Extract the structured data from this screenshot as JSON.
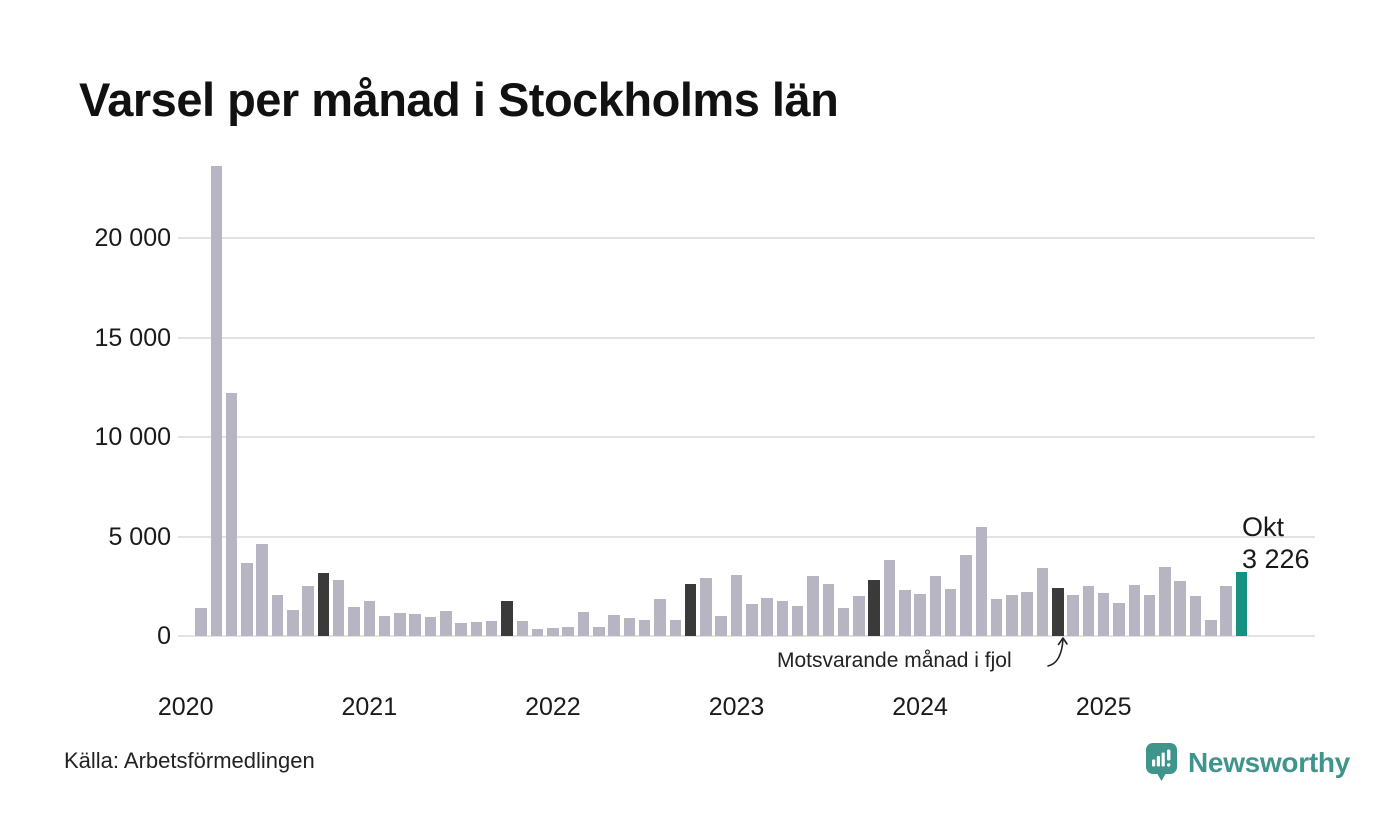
{
  "title": "Varsel per månad i Stockholms län",
  "source": "Källa: Arbetsförmedlingen",
  "brand": {
    "name": "Newsworthy",
    "icon": "newsworthy-speech-bubble-chart-icon"
  },
  "annotation": {
    "text": "Motsvarande månad i fjol"
  },
  "latest_label": {
    "month": "Okt",
    "value": "3 226"
  },
  "colors": {
    "bar_normal": "#b8b5c3",
    "bar_prior_october": "#3a3a3a",
    "bar_latest": "#14917f",
    "gridline": "#e3e3e6",
    "brand_teal": "#3f958b",
    "text_dark": "#1a1a1a"
  },
  "chart_data": {
    "type": "bar",
    "title": "Varsel per månad i Stockholms län",
    "xlabel": "",
    "ylabel": "",
    "ylim": [
      0,
      24000
    ],
    "grid": true,
    "y_ticks": [
      {
        "value": 0,
        "label": "0"
      },
      {
        "value": 5000,
        "label": "5 000"
      },
      {
        "value": 10000,
        "label": "10 000"
      },
      {
        "value": 15000,
        "label": "15 000"
      },
      {
        "value": 20000,
        "label": "20 000"
      }
    ],
    "x_ticks": [
      "2020",
      "2021",
      "2022",
      "2023",
      "2024",
      "2025"
    ],
    "bars": [
      {
        "month": "feb 2020",
        "value": 1400,
        "kind": "normal"
      },
      {
        "month": "mar 2020",
        "value": 23600,
        "kind": "normal"
      },
      {
        "month": "apr 2020",
        "value": 12200,
        "kind": "normal"
      },
      {
        "month": "maj 2020",
        "value": 3650,
        "kind": "normal"
      },
      {
        "month": "jun 2020",
        "value": 4650,
        "kind": "normal"
      },
      {
        "month": "jul 2020",
        "value": 2080,
        "kind": "normal"
      },
      {
        "month": "aug 2020",
        "value": 1300,
        "kind": "normal"
      },
      {
        "month": "sep 2020",
        "value": 2500,
        "kind": "normal"
      },
      {
        "month": "okt 2020",
        "value": 3150,
        "kind": "prior_october"
      },
      {
        "month": "nov 2020",
        "value": 2830,
        "kind": "normal"
      },
      {
        "month": "dec 2020",
        "value": 1460,
        "kind": "normal"
      },
      {
        "month": "jan 2021",
        "value": 1740,
        "kind": "normal"
      },
      {
        "month": "feb 2021",
        "value": 990,
        "kind": "normal"
      },
      {
        "month": "mar 2021",
        "value": 1160,
        "kind": "normal"
      },
      {
        "month": "apr 2021",
        "value": 1120,
        "kind": "normal"
      },
      {
        "month": "maj 2021",
        "value": 950,
        "kind": "normal"
      },
      {
        "month": "jun 2021",
        "value": 1250,
        "kind": "normal"
      },
      {
        "month": "jul 2021",
        "value": 650,
        "kind": "normal"
      },
      {
        "month": "aug 2021",
        "value": 720,
        "kind": "normal"
      },
      {
        "month": "sep 2021",
        "value": 780,
        "kind": "normal"
      },
      {
        "month": "okt 2021",
        "value": 1740,
        "kind": "prior_october"
      },
      {
        "month": "nov 2021",
        "value": 760,
        "kind": "normal"
      },
      {
        "month": "dec 2021",
        "value": 340,
        "kind": "normal"
      },
      {
        "month": "jan 2022",
        "value": 380,
        "kind": "normal"
      },
      {
        "month": "feb 2022",
        "value": 460,
        "kind": "normal"
      },
      {
        "month": "mar 2022",
        "value": 1230,
        "kind": "normal"
      },
      {
        "month": "apr 2022",
        "value": 450,
        "kind": "normal"
      },
      {
        "month": "maj 2022",
        "value": 1050,
        "kind": "normal"
      },
      {
        "month": "jun 2022",
        "value": 910,
        "kind": "normal"
      },
      {
        "month": "jul 2022",
        "value": 790,
        "kind": "normal"
      },
      {
        "month": "aug 2022",
        "value": 1880,
        "kind": "normal"
      },
      {
        "month": "sep 2022",
        "value": 820,
        "kind": "normal"
      },
      {
        "month": "okt 2022",
        "value": 2640,
        "kind": "prior_october"
      },
      {
        "month": "nov 2022",
        "value": 2900,
        "kind": "normal"
      },
      {
        "month": "dec 2022",
        "value": 990,
        "kind": "normal"
      },
      {
        "month": "jan 2023",
        "value": 3050,
        "kind": "normal"
      },
      {
        "month": "feb 2023",
        "value": 1590,
        "kind": "normal"
      },
      {
        "month": "mar 2023",
        "value": 1910,
        "kind": "normal"
      },
      {
        "month": "apr 2023",
        "value": 1750,
        "kind": "normal"
      },
      {
        "month": "maj 2023",
        "value": 1500,
        "kind": "normal"
      },
      {
        "month": "jun 2023",
        "value": 3010,
        "kind": "normal"
      },
      {
        "month": "jul 2023",
        "value": 2600,
        "kind": "normal"
      },
      {
        "month": "aug 2023",
        "value": 1430,
        "kind": "normal"
      },
      {
        "month": "sep 2023",
        "value": 2010,
        "kind": "normal"
      },
      {
        "month": "okt 2023",
        "value": 2840,
        "kind": "prior_october"
      },
      {
        "month": "nov 2023",
        "value": 3800,
        "kind": "normal"
      },
      {
        "month": "dec 2023",
        "value": 2320,
        "kind": "normal"
      },
      {
        "month": "jan 2024",
        "value": 2100,
        "kind": "normal"
      },
      {
        "month": "feb 2024",
        "value": 3010,
        "kind": "normal"
      },
      {
        "month": "mar 2024",
        "value": 2360,
        "kind": "normal"
      },
      {
        "month": "apr 2024",
        "value": 4060,
        "kind": "normal"
      },
      {
        "month": "maj 2024",
        "value": 5490,
        "kind": "normal"
      },
      {
        "month": "jun 2024",
        "value": 1850,
        "kind": "normal"
      },
      {
        "month": "jul 2024",
        "value": 2060,
        "kind": "normal"
      },
      {
        "month": "aug 2024",
        "value": 2190,
        "kind": "normal"
      },
      {
        "month": "sep 2024",
        "value": 3410,
        "kind": "normal"
      },
      {
        "month": "okt 2024",
        "value": 2410,
        "kind": "prior_october"
      },
      {
        "month": "nov 2024",
        "value": 2050,
        "kind": "normal"
      },
      {
        "month": "dec 2024",
        "value": 2500,
        "kind": "normal"
      },
      {
        "month": "jan 2025",
        "value": 2160,
        "kind": "normal"
      },
      {
        "month": "feb 2025",
        "value": 1660,
        "kind": "normal"
      },
      {
        "month": "mar 2025",
        "value": 2550,
        "kind": "normal"
      },
      {
        "month": "apr 2025",
        "value": 2050,
        "kind": "normal"
      },
      {
        "month": "maj 2025",
        "value": 3460,
        "kind": "normal"
      },
      {
        "month": "jun 2025",
        "value": 2750,
        "kind": "normal"
      },
      {
        "month": "jul 2025",
        "value": 2010,
        "kind": "normal"
      },
      {
        "month": "aug 2025",
        "value": 800,
        "kind": "normal"
      },
      {
        "month": "sep 2025",
        "value": 2510,
        "kind": "normal"
      },
      {
        "month": "okt 2025",
        "value": 3226,
        "kind": "latest"
      }
    ]
  }
}
